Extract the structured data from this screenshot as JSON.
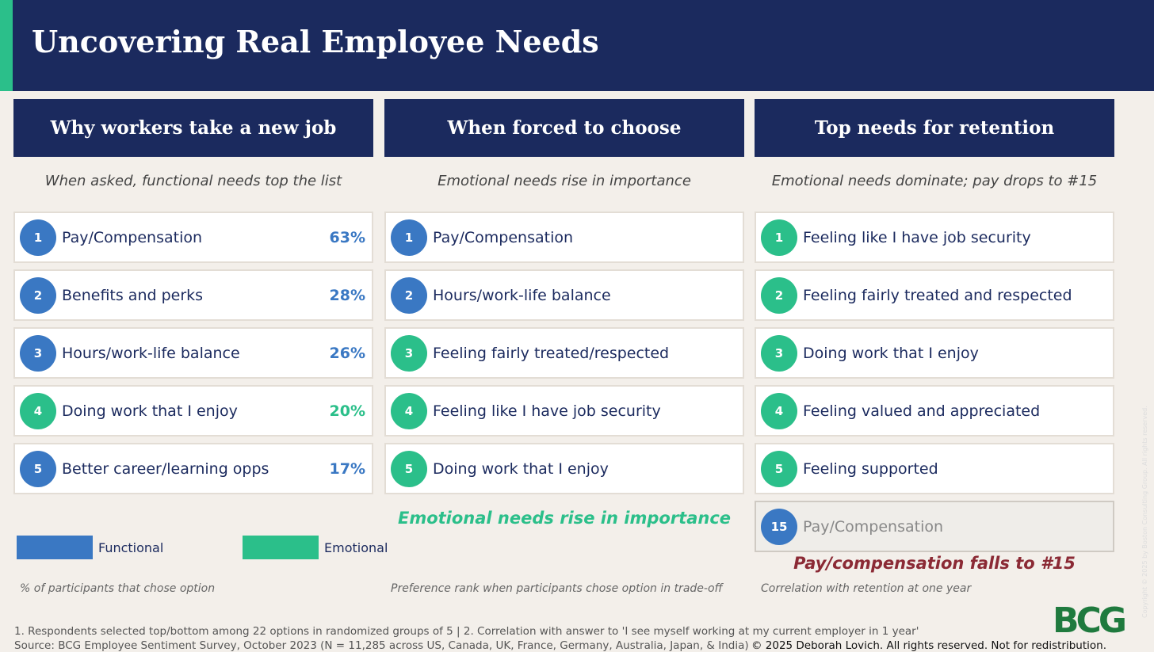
{
  "header": {
    "title": "Uncovering Real Employee Needs"
  },
  "columns": [
    {
      "heading": "Why workers take a new job",
      "subtitle": "When asked, functional needs top the list",
      "items": [
        {
          "rank": 1,
          "label": "Pay/Compensation",
          "value": "63%",
          "color": "#3a78c3"
        },
        {
          "rank": 2,
          "label": "Benefits and perks",
          "value": "28%",
          "color": "#3a78c3"
        },
        {
          "rank": 3,
          "label": "Hours/work-life balance",
          "value": "26%",
          "color": "#3a78c3"
        },
        {
          "rank": 4,
          "label": "Doing work that I enjoy",
          "value": "20%",
          "color": "#2bbf8a"
        },
        {
          "rank": 5,
          "label": "Better career/learning opps",
          "value": "17%",
          "color": "#3a78c3"
        }
      ],
      "caption": "% of participants that chose option"
    },
    {
      "heading": "When forced to choose",
      "subtitle": "Emotional needs rise in importance",
      "items": [
        {
          "rank": 1,
          "label": "Pay/Compensation",
          "color": "#3a78c3"
        },
        {
          "rank": 2,
          "label": "Hours/work-life balance",
          "color": "#3a78c3"
        },
        {
          "rank": 3,
          "label": "Feeling fairly treated/respected",
          "color": "#2bbf8a"
        },
        {
          "rank": 4,
          "label": "Feeling like I have job security",
          "color": "#2bbf8a"
        },
        {
          "rank": 5,
          "label": "Doing work that I enjoy",
          "color": "#2bbf8a"
        }
      ],
      "callout": {
        "text": "Emotional needs rise in importance",
        "color": "#2bbf8a"
      },
      "caption": "Preference rank when participants chose option in trade-off"
    },
    {
      "heading": "Top needs for retention",
      "subtitle": "Emotional needs dominate; pay drops to #15",
      "items": [
        {
          "rank": 1,
          "label": "Feeling like I have job security",
          "color": "#2bbf8a"
        },
        {
          "rank": 2,
          "label": "Feeling fairly treated and respected",
          "color": "#2bbf8a"
        },
        {
          "rank": 3,
          "label": "Doing work that I enjoy",
          "color": "#2bbf8a"
        },
        {
          "rank": 4,
          "label": "Feeling valued and appreciated",
          "color": "#2bbf8a"
        },
        {
          "rank": 5,
          "label": "Feeling supported",
          "color": "#2bbf8a"
        }
      ],
      "extra": {
        "rank": 15,
        "label": "Pay/Compensation",
        "color": "#3a78c3"
      },
      "callout": {
        "text": "Pay/compensation falls to #15",
        "color": "#8b2a35"
      },
      "caption": "Correlation with retention at one year"
    }
  ],
  "legend": [
    {
      "label": "Functional",
      "color": "#3a78c3"
    },
    {
      "label": "Emotional",
      "color": "#2bbf8a"
    }
  ],
  "footer": {
    "note": "1. Respondents selected top/bottom among 22 options in randomized groups of 5  |  2. Correlation with answer to 'I see myself working at my current employer in 1 year'",
    "source": "Source: BCG Employee Sentiment Survey, October 2023 (N = 11,285 across US, Canada, UK, France, Germany, Australia, Japan, & India)",
    "copyright": "© 2025 Deborah Lovich. All rights reserved. Not for redistribution.",
    "logo": "BCG",
    "side_note": "Copyright © 2025 by Boston Consulting Group. All rights reserved."
  }
}
